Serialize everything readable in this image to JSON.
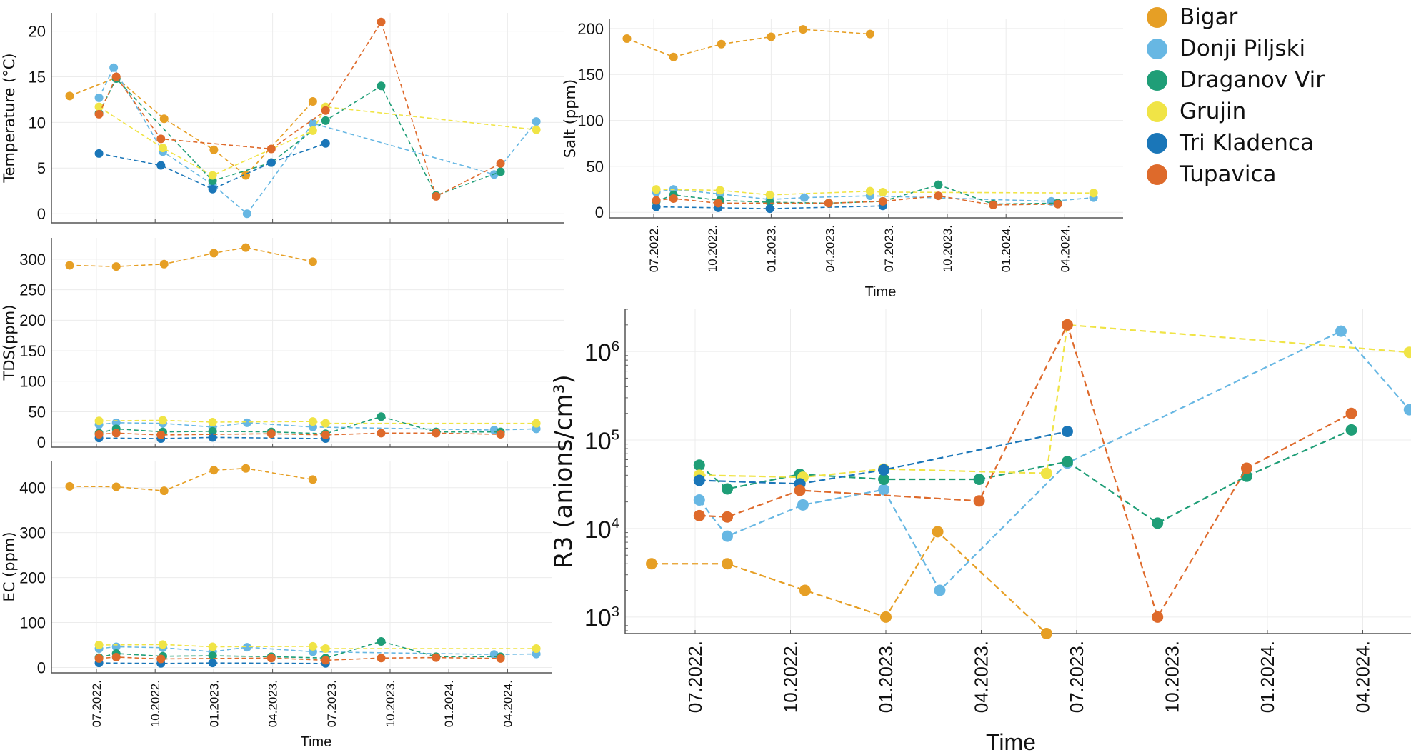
{
  "legend": [
    {
      "name": "Bigar",
      "color": "#E69F25"
    },
    {
      "name": "Donji Piljski",
      "color": "#67B7E3"
    },
    {
      "name": "Draganov Vir",
      "color": "#1F9E77"
    },
    {
      "name": "Grujin",
      "color": "#F0E446"
    },
    {
      "name": "Tri Kladenca",
      "color": "#1A76B8"
    },
    {
      "name": "Tupavica",
      "color": "#DE6A2B"
    }
  ],
  "chart_data": [
    {
      "id": "temperature",
      "type": "line",
      "title": "",
      "xlabel": "",
      "ylabel": "Temperature (°C)",
      "yscale": "linear",
      "ylim": [
        -1,
        22
      ],
      "yticks": [
        0,
        5,
        10,
        15,
        20
      ],
      "ytick_labels": [
        "0",
        "5",
        "10",
        "15",
        "20"
      ],
      "xtick_labels": [],
      "grid": true,
      "series": [
        {
          "name": "Bigar",
          "x": [
            "2022-05-20",
            "2022-08-01",
            "2022-10-15",
            "2023-01-01",
            "2023-02-20",
            "2023-06-05"
          ],
          "y": [
            12.9,
            14.9,
            10.4,
            7.0,
            4.2,
            12.3
          ]
        },
        {
          "name": "Donji Piljski",
          "x": [
            "2022-07-05",
            "2022-07-28",
            "2022-10-13",
            "2022-12-30",
            "2023-02-22",
            "2023-06-05",
            "2024-03-15",
            "2024-05-20"
          ],
          "y": [
            12.7,
            16.0,
            6.8,
            3.2,
            0.0,
            9.9,
            4.3,
            10.1
          ]
        },
        {
          "name": "Draganov Vir",
          "x": [
            "2022-07-05",
            "2022-08-01",
            "2022-12-30",
            "2023-04-01",
            "2023-06-25",
            "2023-09-20",
            "2023-12-15",
            "2024-03-25"
          ],
          "y": [
            11.0,
            14.8,
            3.6,
            5.6,
            10.2,
            14.0,
            2.0,
            4.6
          ]
        },
        {
          "name": "Grujin",
          "x": [
            "2022-07-05",
            "2022-10-13",
            "2022-12-30",
            "2023-06-05",
            "2023-06-25",
            "2024-05-20"
          ],
          "y": [
            11.7,
            7.2,
            4.2,
            9.1,
            11.7,
            9.2
          ]
        },
        {
          "name": "Tri Kladenca",
          "x": [
            "2022-07-05",
            "2022-10-10",
            "2022-12-30",
            "2023-04-01",
            "2023-06-25"
          ],
          "y": [
            6.6,
            5.3,
            2.7,
            5.6,
            7.7
          ]
        },
        {
          "name": "Tupavica",
          "x": [
            "2022-07-05",
            "2022-08-01",
            "2022-10-10",
            "2023-04-01",
            "2023-06-25",
            "2023-09-20",
            "2023-12-15",
            "2024-03-25"
          ],
          "y": [
            10.9,
            15.0,
            8.2,
            7.1,
            11.3,
            21.0,
            1.9,
            5.5
          ]
        }
      ]
    },
    {
      "id": "tds",
      "type": "line",
      "title": "",
      "xlabel": "",
      "ylabel": "TDS(ppm)",
      "yscale": "linear",
      "ylim": [
        -8,
        335
      ],
      "yticks": [
        0,
        50,
        100,
        150,
        200,
        250,
        300
      ],
      "ytick_labels": [
        "0",
        "50",
        "100",
        "150",
        "200",
        "250",
        "300"
      ],
      "xtick_labels": [],
      "grid": true,
      "series": [
        {
          "name": "Bigar",
          "x": [
            "2022-05-20",
            "2022-08-01",
            "2022-10-15",
            "2023-01-01",
            "2023-02-20",
            "2023-06-05"
          ],
          "y": [
            290,
            288,
            292,
            310,
            319,
            296
          ]
        },
        {
          "name": "Donji Piljski",
          "x": [
            "2022-07-05",
            "2022-08-01",
            "2022-10-13",
            "2022-12-30",
            "2023-02-22",
            "2023-06-05",
            "2024-03-15",
            "2024-05-20"
          ],
          "y": [
            29,
            32,
            31,
            25,
            32,
            25,
            20,
            22
          ]
        },
        {
          "name": "Draganov Vir",
          "x": [
            "2022-07-05",
            "2022-08-01",
            "2022-10-13",
            "2022-12-30",
            "2023-04-01",
            "2023-06-25",
            "2023-09-20",
            "2023-12-15",
            "2024-03-25"
          ],
          "y": [
            15,
            22,
            17,
            18,
            17,
            14,
            42,
            17,
            17
          ]
        },
        {
          "name": "Grujin",
          "x": [
            "2022-07-05",
            "2022-10-13",
            "2022-12-30",
            "2023-06-05",
            "2023-06-25",
            "2024-05-20"
          ],
          "y": [
            35,
            36,
            33,
            34,
            31,
            31
          ]
        },
        {
          "name": "Tri Kladenca",
          "x": [
            "2022-07-05",
            "2022-10-10",
            "2022-12-30",
            "2023-06-25"
          ],
          "y": [
            7,
            6,
            8,
            6
          ]
        },
        {
          "name": "Tupavica",
          "x": [
            "2022-07-05",
            "2022-08-01",
            "2022-10-10",
            "2023-04-01",
            "2023-06-25",
            "2023-09-20",
            "2023-12-15",
            "2024-03-25"
          ],
          "y": [
            13,
            15,
            12,
            14,
            12,
            15,
            15,
            13
          ]
        }
      ]
    },
    {
      "id": "ec",
      "type": "line",
      "title": "",
      "xlabel": "Time",
      "ylabel": "EC (ppm)",
      "yscale": "linear",
      "ylim": [
        -12,
        460
      ],
      "yticks": [
        0,
        100,
        200,
        300,
        400
      ],
      "ytick_labels": [
        "0",
        "100",
        "200",
        "300",
        "400"
      ],
      "xtick_labels": [
        "07.2022.",
        "10.2022.",
        "01.2023.",
        "04.2023.",
        "07.2023.",
        "10.2023.",
        "01.2024.",
        "04.2024."
      ],
      "grid": true,
      "series": [
        {
          "name": "Bigar",
          "x": [
            "2022-05-20",
            "2022-08-01",
            "2022-10-15",
            "2023-01-01",
            "2023-02-20",
            "2023-06-05"
          ],
          "y": [
            403,
            402,
            393,
            439,
            443,
            418
          ]
        },
        {
          "name": "Donji Piljski",
          "x": [
            "2022-07-05",
            "2022-08-01",
            "2022-10-13",
            "2022-12-30",
            "2023-02-22",
            "2023-06-05",
            "2024-03-15",
            "2024-05-20"
          ],
          "y": [
            42,
            46,
            44,
            35,
            45,
            35,
            29,
            30
          ]
        },
        {
          "name": "Draganov Vir",
          "x": [
            "2022-07-05",
            "2022-08-01",
            "2022-10-13",
            "2022-12-30",
            "2023-04-01",
            "2023-06-25",
            "2023-09-20",
            "2023-12-15",
            "2024-03-25"
          ],
          "y": [
            22,
            31,
            25,
            26,
            24,
            21,
            58,
            24,
            24
          ]
        },
        {
          "name": "Grujin",
          "x": [
            "2022-07-05",
            "2022-10-13",
            "2022-12-30",
            "2023-06-05",
            "2023-06-25",
            "2024-05-20"
          ],
          "y": [
            50,
            51,
            46,
            47,
            42,
            42
          ]
        },
        {
          "name": "Tri Kladenca",
          "x": [
            "2022-07-05",
            "2022-10-10",
            "2022-12-30",
            "2023-06-25"
          ],
          "y": [
            10,
            9,
            10,
            9
          ]
        },
        {
          "name": "Tupavica",
          "x": [
            "2022-07-05",
            "2022-08-01",
            "2022-10-10",
            "2023-04-01",
            "2023-06-25",
            "2023-09-20",
            "2023-12-15",
            "2024-03-25"
          ],
          "y": [
            20,
            23,
            19,
            21,
            16,
            21,
            22,
            20
          ]
        }
      ]
    },
    {
      "id": "salt",
      "type": "line",
      "title": "",
      "xlabel": "Time",
      "ylabel": "Salt (ppm)",
      "yscale": "linear",
      "ylim": [
        -6,
        210
      ],
      "yticks": [
        0,
        50,
        100,
        150,
        200
      ],
      "ytick_labels": [
        "0",
        "50",
        "100",
        "150",
        "200"
      ],
      "xtick_labels": [
        "07.2022.",
        "10.2022.",
        "01.2023.",
        "04.2023.",
        "07.2023.",
        "10.2023.",
        "01.2024.",
        "04.2024."
      ],
      "grid": true,
      "series": [
        {
          "name": "Bigar",
          "x": [
            "2022-05-20",
            "2022-08-01",
            "2022-10-15",
            "2023-01-01",
            "2023-02-20",
            "2023-06-05"
          ],
          "y": [
            189,
            169,
            183,
            191,
            199,
            194
          ]
        },
        {
          "name": "Donji Piljski",
          "x": [
            "2022-07-05",
            "2022-08-01",
            "2022-10-13",
            "2022-12-30",
            "2023-02-22",
            "2023-06-05",
            "2024-03-15",
            "2024-05-20"
          ],
          "y": [
            22,
            25,
            20,
            14,
            16,
            18,
            12,
            16
          ]
        },
        {
          "name": "Draganov Vir",
          "x": [
            "2022-07-05",
            "2022-08-01",
            "2022-10-13",
            "2022-12-30",
            "2023-04-01",
            "2023-06-25",
            "2023-09-20",
            "2023-12-15",
            "2024-03-25"
          ],
          "y": [
            12,
            19,
            13,
            11,
            10,
            12,
            30,
            9,
            10
          ]
        },
        {
          "name": "Grujin",
          "x": [
            "2022-07-05",
            "2022-10-13",
            "2022-12-30",
            "2023-06-05",
            "2023-06-25",
            "2024-05-20"
          ],
          "y": [
            25,
            24,
            19,
            23,
            22,
            21
          ]
        },
        {
          "name": "Tri Kladenca",
          "x": [
            "2022-07-05",
            "2022-10-10",
            "2022-12-30",
            "2023-06-25"
          ],
          "y": [
            6,
            5,
            4,
            7
          ]
        },
        {
          "name": "Tupavica",
          "x": [
            "2022-07-05",
            "2022-08-01",
            "2022-10-10",
            "2023-04-01",
            "2023-06-25",
            "2023-09-20",
            "2023-12-15",
            "2024-03-25"
          ],
          "y": [
            13,
            15,
            10,
            10,
            12,
            18,
            8,
            9
          ]
        }
      ]
    },
    {
      "id": "r3",
      "type": "line",
      "title": "",
      "xlabel": "Time",
      "ylabel": "R3 (anions/cm³)",
      "yscale": "log",
      "ylim": [
        650,
        3000000
      ],
      "yticks": [
        1000,
        10000,
        100000,
        1000000
      ],
      "ytick_labels": [
        [
          "10",
          "3"
        ],
        [
          "10",
          "4"
        ],
        [
          "10",
          "5"
        ],
        [
          "10",
          "6"
        ]
      ],
      "xtick_labels": [
        "07.2022.",
        "10.2022.",
        "01.2023.",
        "04.2023.",
        "07.2023.",
        "10.2023.",
        "01.2024.",
        "04.2024."
      ],
      "grid": true,
      "series": [
        {
          "name": "Bigar",
          "x": [
            "2022-05-20",
            "2022-08-01",
            "2022-10-15",
            "2023-01-01",
            "2023-02-20",
            "2023-06-05"
          ],
          "y": [
            4000,
            4000,
            2000,
            1000,
            9200,
            650
          ]
        },
        {
          "name": "Donji Piljski",
          "x": [
            "2022-07-05",
            "2022-08-01",
            "2022-10-13",
            "2022-12-30",
            "2023-02-22",
            "2023-06-25",
            "2024-03-15",
            "2024-05-20"
          ],
          "y": [
            21000,
            8200,
            18500,
            27500,
            2000,
            55000,
            1700000,
            220000
          ]
        },
        {
          "name": "Draganov Vir",
          "x": [
            "2022-07-05",
            "2022-08-01",
            "2022-10-10",
            "2022-12-30",
            "2023-04-01",
            "2023-06-25",
            "2023-09-20",
            "2023-12-15",
            "2024-03-25"
          ],
          "y": [
            52000,
            28000,
            41000,
            36000,
            36000,
            57000,
            11500,
            39000,
            130000
          ]
        },
        {
          "name": "Grujin",
          "x": [
            "2022-07-05",
            "2022-10-13",
            "2022-12-30",
            "2023-06-05",
            "2023-06-25",
            "2024-05-20"
          ],
          "y": [
            40000,
            38000,
            47000,
            42000,
            2000000,
            980000
          ]
        },
        {
          "name": "Tri Kladenca",
          "x": [
            "2022-07-05",
            "2022-10-10",
            "2022-12-30",
            "2023-06-25"
          ],
          "y": [
            35000,
            32000,
            46000,
            125000
          ]
        },
        {
          "name": "Tupavica",
          "x": [
            "2022-07-05",
            "2022-08-01",
            "2022-10-10",
            "2023-04-01",
            "2023-06-25",
            "2023-09-20",
            "2023-12-15",
            "2024-03-25"
          ],
          "y": [
            14000,
            13500,
            27000,
            20500,
            2000000,
            1000,
            48000,
            200000
          ]
        }
      ]
    }
  ]
}
